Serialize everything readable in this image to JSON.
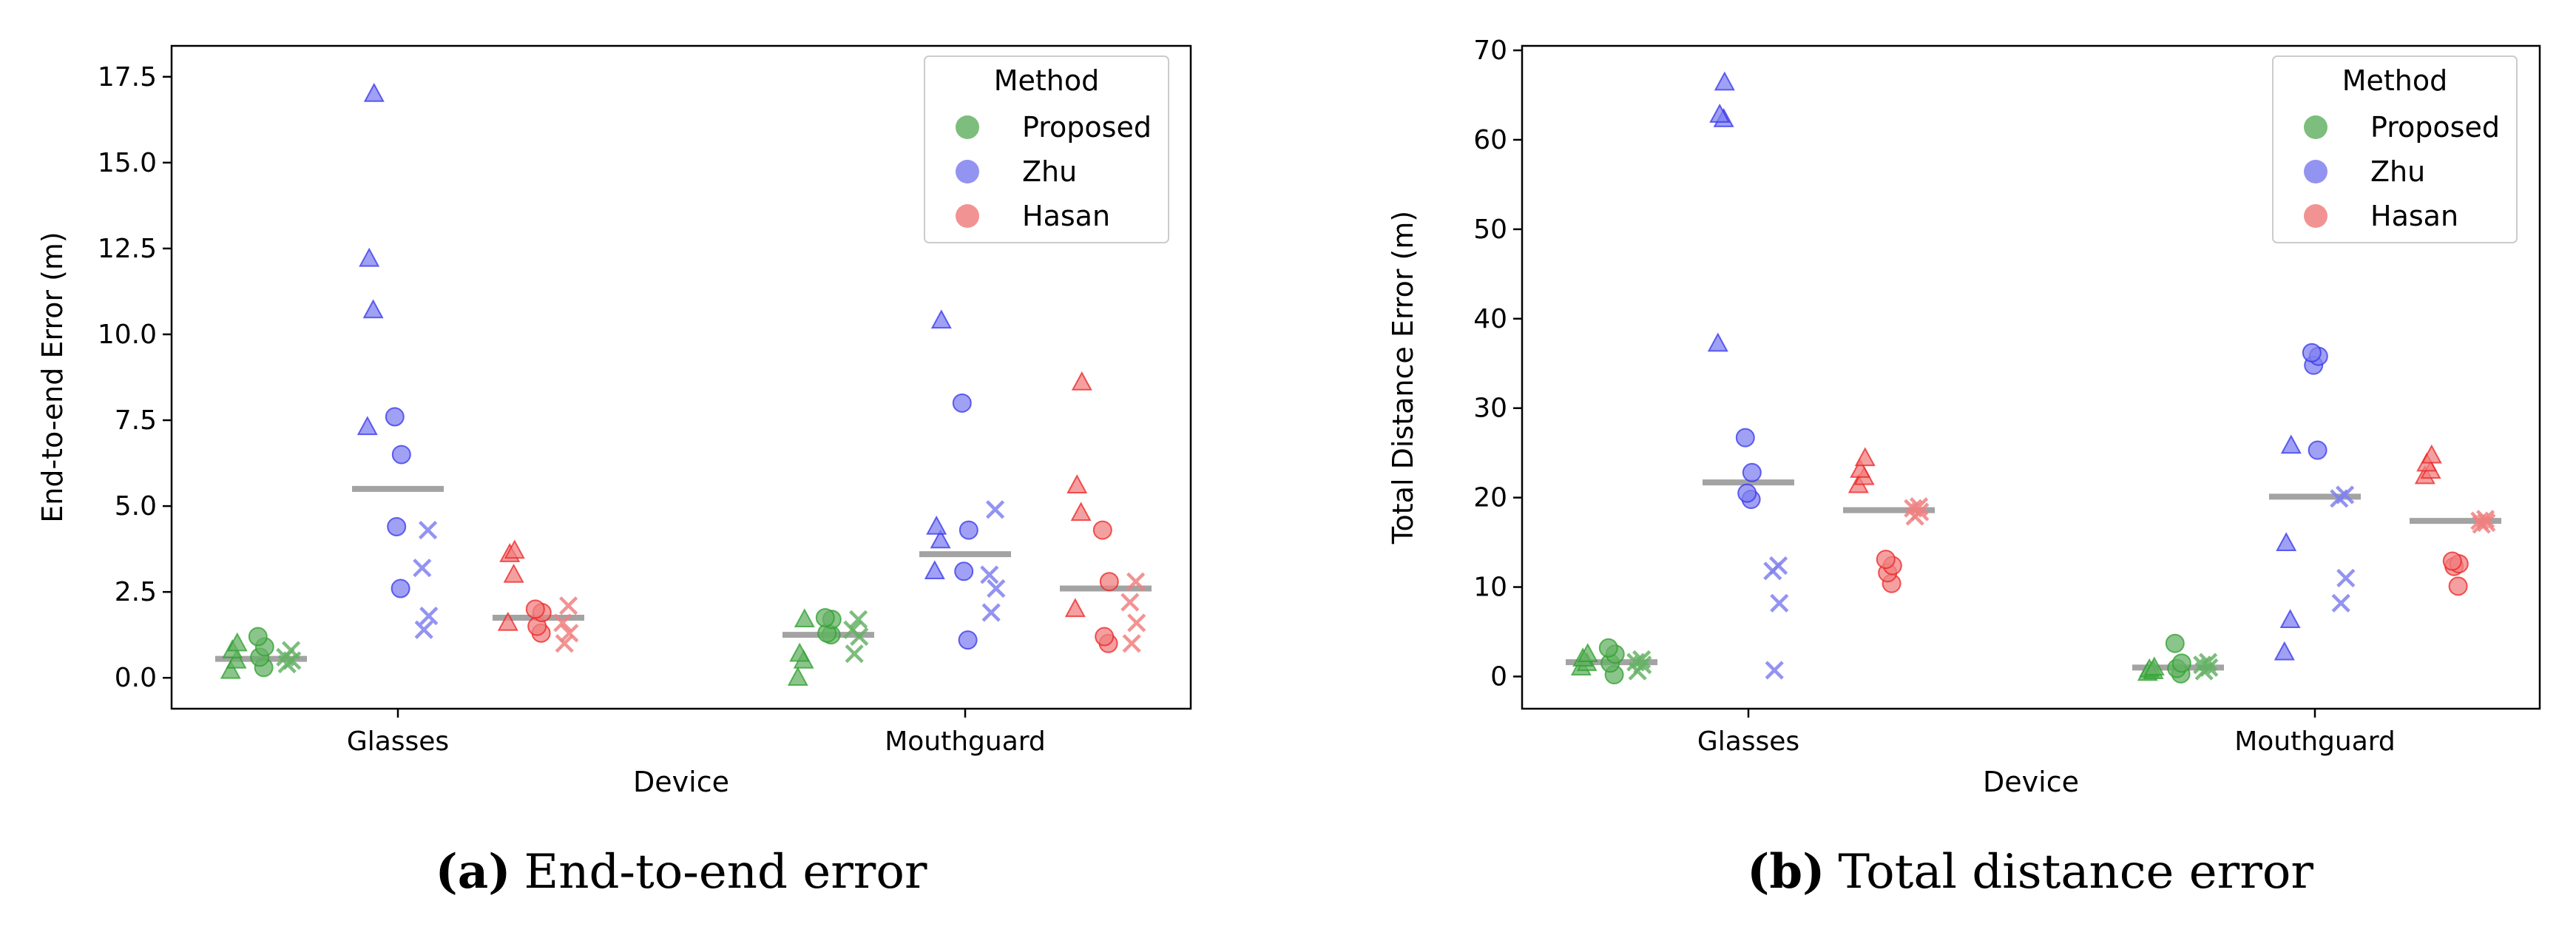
{
  "figure": {
    "legend_title": "Method",
    "methods": [
      {
        "name": "Proposed",
        "color": "#2ca02c",
        "fill": "#66b266"
      },
      {
        "name": "Zhu",
        "color": "#3333ee",
        "fill": "#8080f0"
      },
      {
        "name": "Hasan",
        "color": "#ee2222",
        "fill": "#f08080"
      }
    ],
    "median_color": "#999999"
  },
  "chart_data": [
    {
      "type": "scatter",
      "panel": "a",
      "caption_letter": "(a)",
      "caption": "End-to-end error",
      "xlabel": "Device",
      "ylabel": "End-to-end Error (m)",
      "categories": [
        "Glasses",
        "Mouthguard"
      ],
      "ylim": [
        -0.9,
        18.4
      ],
      "yticks": [
        "0.0",
        "2.5",
        "5.0",
        "7.5",
        "10.0",
        "12.5",
        "15.0",
        "17.5"
      ],
      "legend": {
        "title": "Method",
        "position": "top-right"
      },
      "series": [
        {
          "method": "Proposed",
          "device": "Glasses",
          "median": 0.55,
          "triangle": [
            0.2,
            0.5,
            0.8,
            1.0
          ],
          "circle": [
            0.3,
            0.6,
            0.9,
            1.2
          ],
          "cross": [
            0.4,
            0.5,
            0.6,
            0.8
          ]
        },
        {
          "method": "Zhu",
          "device": "Glasses",
          "median": 5.5,
          "triangle": [
            7.3,
            10.7,
            12.2,
            17.0
          ],
          "circle": [
            2.6,
            4.4,
            6.5,
            7.6
          ],
          "cross": [
            1.4,
            1.8,
            3.2,
            4.3
          ]
        },
        {
          "method": "Hasan",
          "device": "Glasses",
          "median": 1.75,
          "triangle": [
            1.6,
            3.0,
            3.6,
            3.7
          ],
          "circle": [
            1.3,
            1.5,
            1.9,
            2.0
          ],
          "cross": [
            1.0,
            1.3,
            1.6,
            2.1
          ]
        },
        {
          "method": "Proposed",
          "device": "Mouthguard",
          "median": 1.25,
          "triangle": [
            0.0,
            0.5,
            0.7,
            1.7
          ],
          "circle": [
            1.25,
            1.3,
            1.7,
            1.75
          ],
          "cross": [
            0.7,
            1.2,
            1.4,
            1.7
          ]
        },
        {
          "method": "Zhu",
          "device": "Mouthguard",
          "median": 3.6,
          "triangle": [
            3.1,
            4.0,
            4.4,
            10.4
          ],
          "circle": [
            1.1,
            3.1,
            4.3,
            8.0
          ],
          "cross": [
            1.9,
            2.6,
            3.0,
            4.9
          ]
        },
        {
          "method": "Hasan",
          "device": "Mouthguard",
          "median": 2.6,
          "triangle": [
            2.0,
            4.8,
            5.6,
            8.6
          ],
          "circle": [
            1.0,
            1.2,
            2.8,
            4.3
          ],
          "cross": [
            1.0,
            1.6,
            2.2,
            2.8
          ]
        }
      ]
    },
    {
      "type": "scatter",
      "panel": "b",
      "caption_letter": "(b)",
      "caption": "Total distance error",
      "xlabel": "Device",
      "ylabel": "Total Distance Error (m)",
      "categories": [
        "Glasses",
        "Mouthguard"
      ],
      "ylim": [
        -3.6,
        70.5
      ],
      "yticks": [
        "0",
        "10",
        "20",
        "30",
        "40",
        "50",
        "60",
        "70"
      ],
      "legend": {
        "title": "Method",
        "position": "top-right"
      },
      "series": [
        {
          "method": "Proposed",
          "device": "Glasses",
          "median": 1.6,
          "triangle": [
            1.0,
            1.5,
            2.0,
            2.5
          ],
          "circle": [
            0.2,
            1.5,
            2.5,
            3.2
          ],
          "cross": [
            0.6,
            1.3,
            1.6,
            1.9
          ]
        },
        {
          "method": "Zhu",
          "device": "Glasses",
          "median": 21.7,
          "triangle": [
            37.2,
            62.3,
            62.8,
            66.4
          ],
          "circle": [
            19.8,
            20.5,
            22.8,
            26.7
          ],
          "cross": [
            0.7,
            8.2,
            11.8,
            12.4
          ]
        },
        {
          "method": "Hasan",
          "device": "Glasses",
          "median": 18.6,
          "triangle": [
            21.4,
            22.3,
            23.1,
            24.4
          ],
          "circle": [
            10.4,
            11.6,
            12.4,
            13.1
          ],
          "cross": [
            17.9,
            18.4,
            18.8,
            19.0
          ]
        },
        {
          "method": "Proposed",
          "device": "Mouthguard",
          "median": 1.0,
          "triangle": [
            0.4,
            0.6,
            0.8,
            1.0
          ],
          "circle": [
            0.3,
            0.9,
            1.5,
            3.7
          ],
          "cross": [
            0.6,
            1.0,
            1.3,
            1.6
          ]
        },
        {
          "method": "Zhu",
          "device": "Mouthguard",
          "median": 20.1,
          "triangle": [
            2.7,
            6.3,
            14.9,
            25.8
          ],
          "circle": [
            25.3,
            34.8,
            35.8,
            36.2
          ],
          "cross": [
            8.2,
            11.0,
            19.9,
            20.3
          ]
        },
        {
          "method": "Hasan",
          "device": "Mouthguard",
          "median": 17.4,
          "triangle": [
            22.4,
            23.0,
            23.8,
            24.7
          ],
          "circle": [
            10.1,
            12.3,
            12.6,
            12.9
          ],
          "cross": [
            17.0,
            17.2,
            17.4,
            17.6
          ]
        }
      ]
    }
  ]
}
